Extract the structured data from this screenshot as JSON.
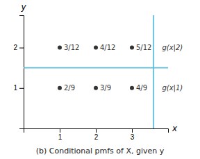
{
  "chart_data": {
    "type": "scatter",
    "title": "(b) Conditional pmfs of X, given y",
    "x_label": "x",
    "y_label": "y",
    "x": [
      1,
      2,
      3,
      1,
      2,
      3
    ],
    "values": [
      2,
      2,
      2,
      1,
      1,
      1
    ],
    "color": "#333333",
    "xlim": [
      0.0,
      4.0
    ],
    "ylim": [
      0.0,
      2.8
    ],
    "xticks": [
      1,
      2,
      3
    ],
    "yticks": [
      1,
      2
    ],
    "reference_lines": [
      {
        "axis": "y",
        "value": 1.5,
        "color": "#5bbcdc"
      },
      {
        "axis": "x",
        "value": 3.6,
        "color": "#5bbcdc"
      }
    ],
    "annotations": [
      {
        "text": "3/12",
        "x": 1,
        "y": 2
      },
      {
        "text": "4/12",
        "x": 2,
        "y": 2
      },
      {
        "text": "5/12",
        "x": 3,
        "y": 2
      },
      {
        "text": "2/9",
        "x": 1,
        "y": 1
      },
      {
        "text": "3/9",
        "x": 2,
        "y": 1
      },
      {
        "text": "4/9",
        "x": 3,
        "y": 1
      },
      {
        "text": "g(x|2)",
        "x": 3.72,
        "y": 2.0,
        "style": "italic"
      },
      {
        "text": "g(x|1)",
        "x": 3.72,
        "y": 1.0,
        "style": "italic"
      }
    ]
  }
}
